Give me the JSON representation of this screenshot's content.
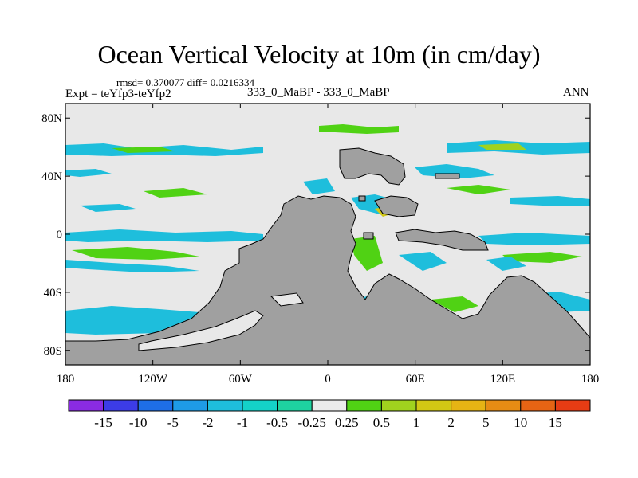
{
  "title": "Ocean Vertical Velocity at 10m (in cm/day)",
  "stats": "rmsd= 0.370077 diff= 0.0216334",
  "experiment": "Expt = teYfp3-teYfp2",
  "case": "333_0_MaBP - 333_0_MaBP",
  "season": "ANN",
  "lat_ticks": [
    "80N",
    "40N",
    "0",
    "40S",
    "80S"
  ],
  "lon_ticks": [
    "180",
    "120W",
    "60W",
    "0",
    "60E",
    "120E",
    "180"
  ],
  "colorbar": {
    "colors": [
      "#8a2be2",
      "#3c3ce6",
      "#1e6ee6",
      "#1e9be6",
      "#1ebedc",
      "#14d2c8",
      "#1ed2a0",
      "#ebebeb",
      "#50d214",
      "#a0d21e",
      "#d2c814",
      "#e6b414",
      "#e68c14",
      "#e66414",
      "#e63c14"
    ],
    "labels": [
      "-15",
      "-10",
      "-5",
      "-2",
      "-1",
      "-0.5",
      "-0.25",
      "0.25",
      "0.5",
      "1",
      "2",
      "5",
      "10",
      "15"
    ]
  },
  "land_color": "#a0a0a0",
  "ocean_color": "#e8e8e8"
}
